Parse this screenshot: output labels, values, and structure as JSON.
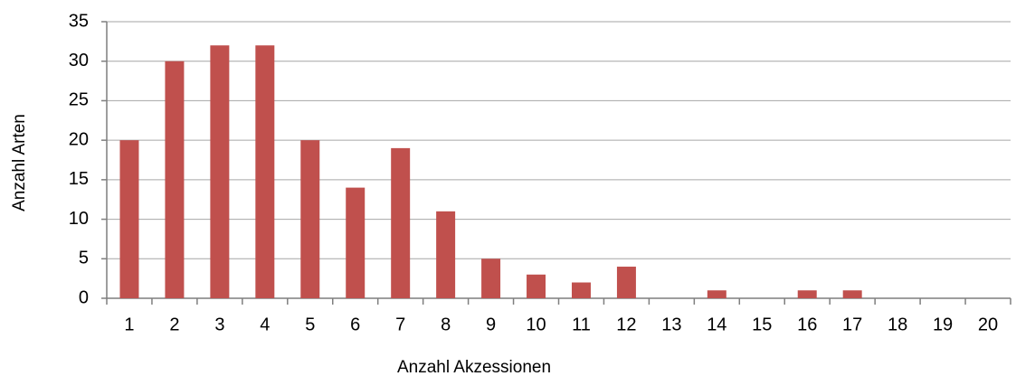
{
  "chart_data": {
    "type": "bar",
    "x_label": "Anzahl Akzessionen",
    "y_label": "Anzahl Arten",
    "categories": [
      "1",
      "2",
      "3",
      "4",
      "5",
      "6",
      "7",
      "8",
      "9",
      "10",
      "11",
      "12",
      "13",
      "14",
      "15",
      "16",
      "17",
      "18",
      "19",
      "20"
    ],
    "values": [
      20,
      30,
      32,
      32,
      20,
      14,
      19,
      11,
      5,
      3,
      2,
      4,
      0,
      1,
      0,
      1,
      1,
      0,
      0,
      0
    ],
    "color": "#c0504d",
    "ylim": [
      0,
      35
    ],
    "yticks": [
      0,
      5,
      10,
      15,
      20,
      25,
      30,
      35
    ],
    "grid": true
  }
}
